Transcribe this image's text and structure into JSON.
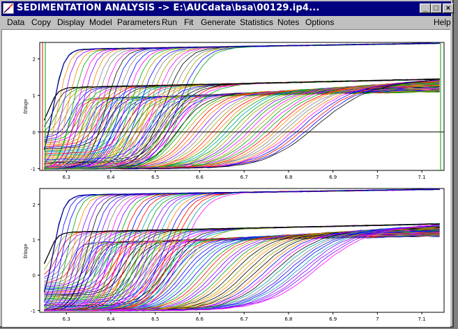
{
  "window": {
    "title": "SEDIMENTATION ANALYSIS -> E:\\AUCdata\\bsa\\00129.ip4...",
    "buttons": {
      "minimize": "_",
      "maximize": "□",
      "close": "×"
    }
  },
  "menu": {
    "items": [
      "Data",
      "Copy",
      "Display",
      "Model",
      "Parameters",
      "Run",
      "Fit",
      "Generate",
      "Statistics",
      "Notes",
      "Options"
    ],
    "help": "Help"
  },
  "plots": {
    "ylabel": "fringe",
    "top": {
      "x_ticks": [
        "6.3",
        "6.4",
        "6.5",
        "6.6",
        "6.7",
        "6.8",
        "6.9",
        "7",
        "7.1"
      ],
      "y_ticks": [
        "2",
        "1",
        "0",
        "-1"
      ]
    },
    "bottom": {
      "x_ticks": [
        "6.3",
        "6.4",
        "6.5",
        "6.6",
        "6.7",
        "6.8",
        "6.9",
        "7",
        "7.1"
      ],
      "y_ticks": [
        "2",
        "1",
        "0",
        "-1"
      ]
    }
  },
  "chart_data": [
    {
      "type": "line",
      "xlabel": "",
      "ylabel": "fringe",
      "xlim": [
        6.24,
        7.15
      ],
      "ylim": [
        -1.05,
        2.45
      ],
      "x_ticks": [
        6.3,
        6.4,
        6.5,
        6.6,
        6.7,
        6.8,
        6.9,
        7.0,
        7.1
      ],
      "y_ticks": [
        -1,
        0,
        1,
        2
      ],
      "grid": false,
      "zero_line": true,
      "colors": [
        "#ff0000",
        "#00a000",
        "#0000ff",
        "#ff00ff",
        "#00a0a0",
        "#a0a000",
        "#000000",
        "#ff8000",
        "#8000ff",
        "#808080"
      ],
      "series_groups": [
        {
          "group": "top plateau scans",
          "plateau_start": 2.25,
          "plateau_end": 2.43,
          "boundary_x_range": [
            6.27,
            6.56
          ]
        },
        {
          "group": "middle plateau scans",
          "plateau_start": 1.2,
          "plateau_end": 1.45,
          "boundary_x_range": [
            6.27,
            6.9
          ]
        },
        {
          "group": "lower scans",
          "baseline": -1.0,
          "plateau_end": 1.1,
          "boundary_x_range": [
            6.3,
            6.86
          ]
        }
      ]
    },
    {
      "type": "line",
      "xlabel": "",
      "ylabel": "fringe",
      "xlim": [
        6.24,
        7.15
      ],
      "ylim": [
        -1.05,
        2.45
      ],
      "x_ticks": [
        6.3,
        6.4,
        6.5,
        6.6,
        6.7,
        6.8,
        6.9,
        7.0,
        7.1
      ],
      "y_ticks": [
        -1,
        0,
        1,
        2
      ],
      "grid": false,
      "zero_line": false,
      "colors": [
        "#ff0000",
        "#00a000",
        "#0000ff",
        "#ff00ff",
        "#00a0a0",
        "#a0a000",
        "#000000",
        "#ff8000",
        "#8000ff",
        "#808080"
      ],
      "series_groups": [
        {
          "group": "top plateau scans",
          "plateau_start": 2.25,
          "plateau_end": 2.43,
          "boundary_x_range": [
            6.27,
            6.56
          ]
        },
        {
          "group": "middle plateau scans",
          "plateau_start": 1.2,
          "plateau_end": 1.45,
          "boundary_x_range": [
            6.27,
            6.9
          ]
        },
        {
          "group": "lower scans",
          "baseline": -1.0,
          "plateau_end": 1.1,
          "boundary_x_range": [
            6.3,
            6.86
          ]
        }
      ]
    }
  ]
}
